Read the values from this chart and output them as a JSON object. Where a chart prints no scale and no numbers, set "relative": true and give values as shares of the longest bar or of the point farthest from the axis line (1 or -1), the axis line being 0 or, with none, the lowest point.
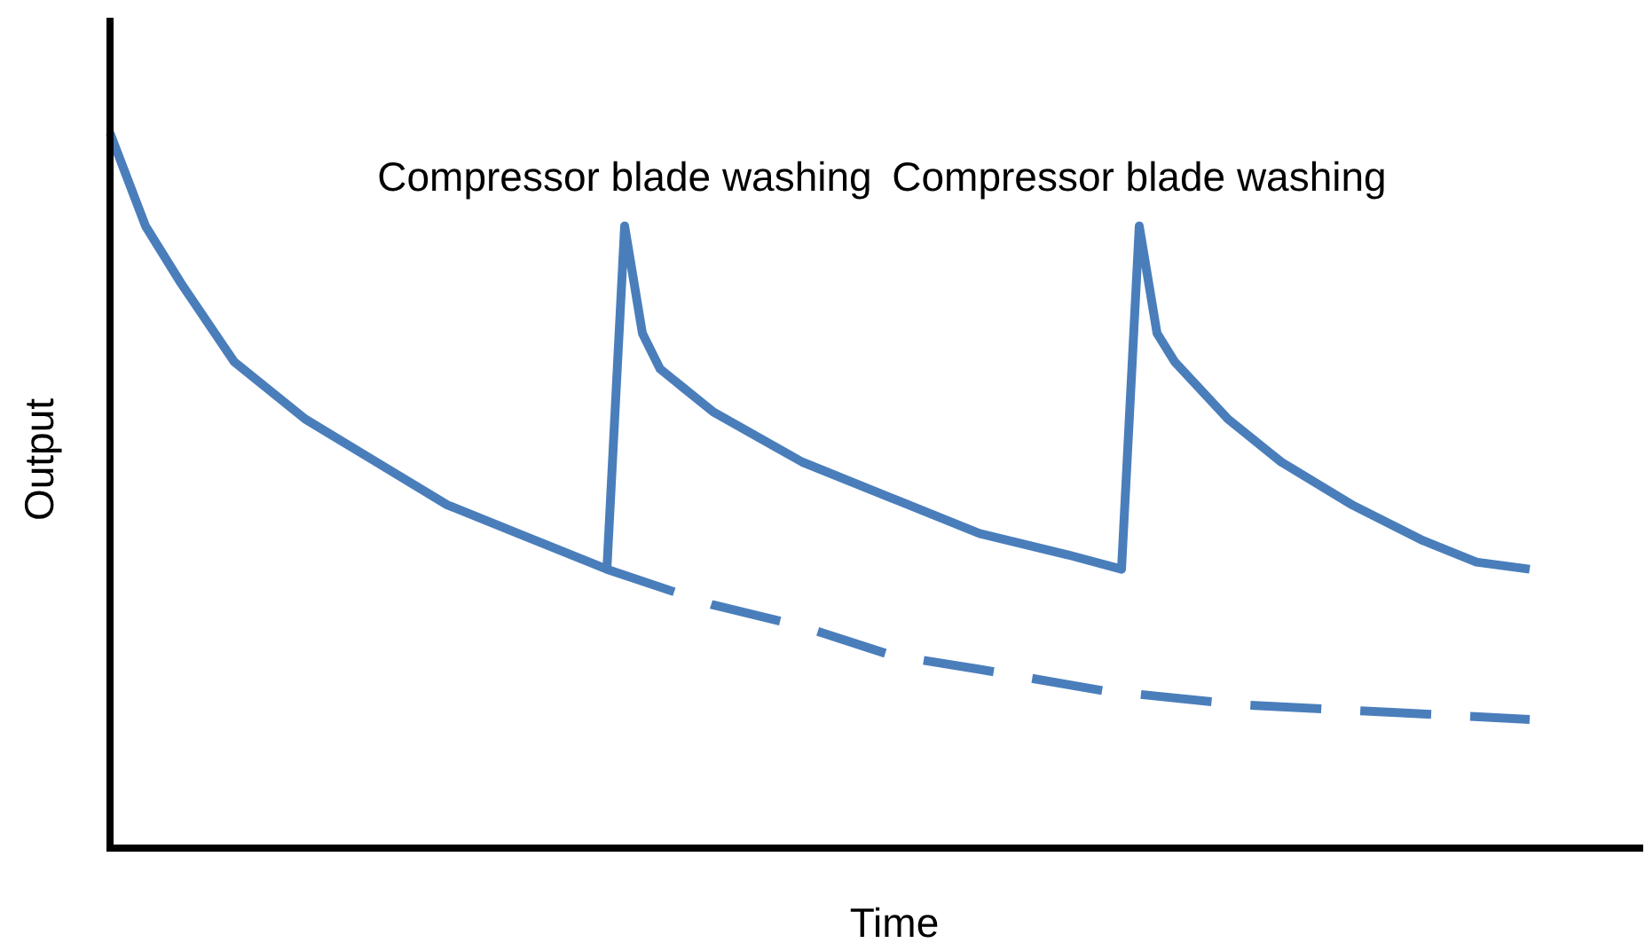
{
  "chart_data": {
    "type": "line",
    "xlabel": "Time",
    "ylabel": "Output",
    "relative": true,
    "categories": [
      null,
      null,
      null,
      null,
      null,
      null,
      null,
      null,
      null,
      null,
      null,
      null,
      null,
      null,
      null,
      null,
      null,
      null,
      null,
      null,
      null,
      null,
      null,
      null,
      null,
      null,
      null,
      null,
      null,
      null,
      null,
      null,
      null,
      null,
      null,
      null,
      null,
      null,
      null,
      null,
      null,
      null,
      null,
      null,
      null,
      null,
      null,
      null,
      null,
      null,
      null,
      null,
      null,
      null,
      null,
      null,
      null,
      null,
      null,
      null,
      null,
      null,
      null,
      null,
      null,
      null,
      null,
      null,
      null,
      null,
      null,
      null,
      null,
      null,
      null,
      null,
      null,
      null,
      null,
      null,
      null
    ],
    "annotations": [
      "Compressor blade washing",
      "Compressor blade washing"
    ],
    "series": [
      {
        "color": "#4a7ebb",
        "line_style": "solid",
        "values": [
          1,
          null,
          0.87,
          null,
          0.79,
          null,
          null,
          0.68,
          null,
          null,
          null,
          0.6,
          null,
          null,
          null,
          0.54,
          null,
          null,
          null,
          0.48,
          null,
          null,
          null,
          0.44,
          null,
          null,
          null,
          null,
          0.39,
          0.87,
          0.72,
          0.67,
          null,
          null,
          0.61,
          null,
          null,
          null,
          null,
          0.54,
          null,
          null,
          null,
          null,
          0.49,
          null,
          null,
          null,
          null,
          0.44,
          null,
          null,
          null,
          null,
          0.41,
          null,
          null,
          0.39,
          0.87,
          0.72,
          0.68,
          null,
          null,
          0.6,
          null,
          null,
          0.54,
          null,
          null,
          null,
          0.48,
          null,
          null,
          null,
          0.43,
          null,
          null,
          0.4,
          null,
          null,
          0.39
        ]
      },
      {
        "color": "#4a7ebb",
        "line_style": "dashed",
        "values": [
          null,
          null,
          null,
          null,
          null,
          null,
          null,
          null,
          null,
          null,
          null,
          null,
          null,
          null,
          null,
          null,
          null,
          null,
          null,
          null,
          null,
          null,
          null,
          null,
          null,
          null,
          null,
          null,
          0.39,
          null,
          null,
          null,
          null,
          null,
          0.34,
          null,
          null,
          null,
          null,
          0.31,
          null,
          null,
          null,
          null,
          0.27,
          null,
          null,
          null,
          null,
          0.25,
          null,
          null,
          null,
          null,
          null,
          null,
          0.22,
          null,
          null,
          null,
          null,
          null,
          null,
          null,
          0.2,
          null,
          null,
          null,
          null,
          null,
          null,
          null,
          0.19,
          null,
          null,
          null,
          null,
          null,
          null,
          null,
          0.18
        ]
      }
    ]
  }
}
